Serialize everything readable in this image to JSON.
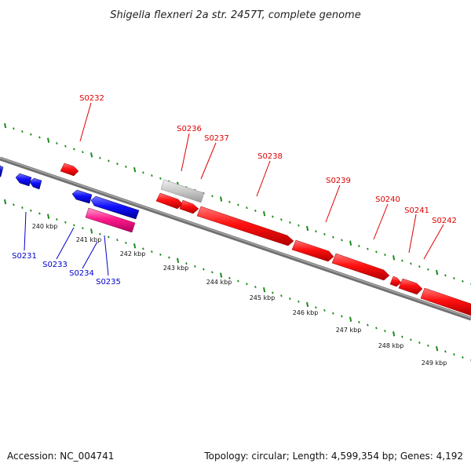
{
  "title": "Shigella flexneri 2a str. 2457T, complete genome",
  "footer": {
    "accession": "Accession: NC_004741",
    "summary": "Topology: circular; Length: 4,599,354 bp; Genes: 4,192"
  },
  "colors": {
    "forward_gene": "#ff0000",
    "reverse_gene": "#0000ff",
    "rna_gene": "#ff1a8c",
    "other_feature": "#c0c0c0",
    "backbone": "#808080",
    "tick": "#1a8a1a"
  },
  "scale_labels": [
    "240 kbp",
    "241 kbp",
    "242 kbp",
    "243 kbp",
    "244 kbp",
    "245 kbp",
    "246 kbp",
    "247 kbp",
    "248 kbp",
    "249 kbp"
  ],
  "gene_labels_forward": [
    "S0232",
    "S0236",
    "S0237",
    "S0238",
    "S0239",
    "S0240",
    "S0241",
    "S0242"
  ],
  "gene_labels_reverse": [
    "S0231",
    "S0233",
    "S0234",
    "S0235"
  ]
}
